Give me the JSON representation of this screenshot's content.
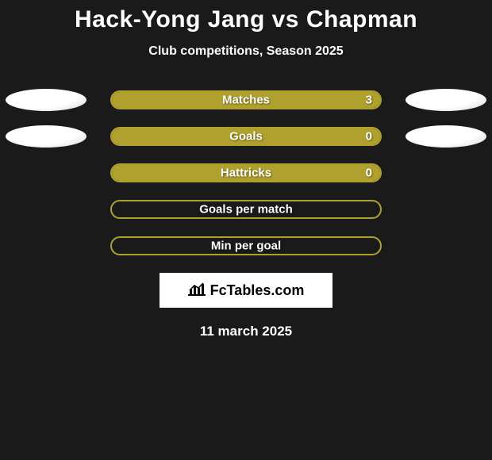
{
  "title": "Hack-Yong Jang vs Chapman",
  "subtitle": "Club competitions, Season 2025",
  "date": "11 march 2025",
  "logo_text": "FcTables.com",
  "colors": {
    "accent": "#b0a12f",
    "fill": "#b0a12f",
    "border": "#b0a12f",
    "bg": "#1a1a1a"
  },
  "rows": [
    {
      "label": "Matches",
      "value": "3",
      "fill_pct": 100,
      "show_value": true,
      "show_avatar": true
    },
    {
      "label": "Goals",
      "value": "0",
      "fill_pct": 100,
      "show_value": true,
      "show_avatar": true
    },
    {
      "label": "Hattricks",
      "value": "0",
      "fill_pct": 100,
      "show_value": true,
      "show_avatar": false
    },
    {
      "label": "Goals per match",
      "value": "",
      "fill_pct": 0,
      "show_value": false,
      "show_avatar": false
    },
    {
      "label": "Min per goal",
      "value": "",
      "fill_pct": 0,
      "show_value": false,
      "show_avatar": false
    }
  ]
}
